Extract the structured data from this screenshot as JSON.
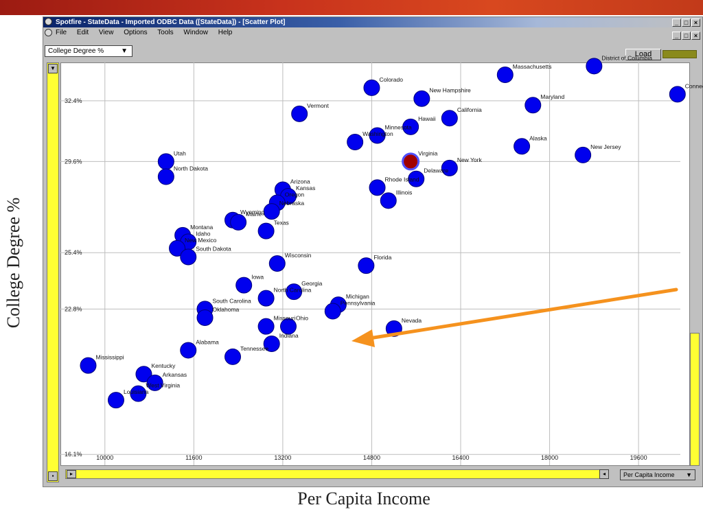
{
  "slide": {
    "y_axis_title": "College Degree %",
    "x_axis_title": "Per Capita Income"
  },
  "window": {
    "title": "Spotfire - StateData - Imported ODBC Data ([StateData]) - [Scatter Plot]",
    "buttons": [
      "_",
      "□",
      "×"
    ],
    "menu": [
      "File",
      "Edit",
      "View",
      "Options",
      "Tools",
      "Window",
      "Help"
    ],
    "y_selector": "College Degree %",
    "y_selector_arrow": "▼",
    "x_selector": "Per Capita Income",
    "x_selector_arrow": "▼",
    "load_label": "Load",
    "accent_color": "#0a246a",
    "scrollbar_color": "#ffff33",
    "arrow_color": "#f5921e"
  },
  "chart_data": {
    "type": "scatter",
    "xlabel": "Per Capita Income",
    "ylabel": "College Degree %",
    "xlim": [
      9200,
      20500
    ],
    "ylim": [
      15.6,
      34.2
    ],
    "x_ticks": [
      10000,
      11600,
      13200,
      14800,
      16400,
      18000,
      19600
    ],
    "x_tick_labels": [
      "10000",
      "11600",
      "13200",
      "14800",
      "16400",
      "18000",
      "19600"
    ],
    "y_ticks": [
      16.1,
      22.8,
      25.4,
      29.6,
      32.4
    ],
    "y_tick_labels": [
      "16.1%",
      "22.8%",
      "25.4%",
      "29.6%",
      "32.4%"
    ],
    "grid": true,
    "point_color": "#0000ee",
    "highlight_color": "#a00000",
    "points": [
      {
        "label": "Colorado",
        "x": 14800,
        "y": 33.0
      },
      {
        "label": "Massachusetts",
        "x": 17200,
        "y": 33.6
      },
      {
        "label": "District of Columbia",
        "x": 18800,
        "y": 34.0
      },
      {
        "label": "Connecticut",
        "x": 20300,
        "y": 32.7
      },
      {
        "label": "New Hampshire",
        "x": 15700,
        "y": 32.5
      },
      {
        "label": "Maryland",
        "x": 17700,
        "y": 32.2
      },
      {
        "label": "Vermont",
        "x": 13500,
        "y": 31.8
      },
      {
        "label": "California",
        "x": 16200,
        "y": 31.6
      },
      {
        "label": "Hawaii",
        "x": 15500,
        "y": 31.2
      },
      {
        "label": "Minnesota",
        "x": 14900,
        "y": 30.8
      },
      {
        "label": "Washington",
        "x": 14500,
        "y": 30.5
      },
      {
        "label": "Alaska",
        "x": 17500,
        "y": 30.3
      },
      {
        "label": "New Jersey",
        "x": 18600,
        "y": 29.9
      },
      {
        "label": "Virginia",
        "x": 15500,
        "y": 29.6,
        "highlight": true
      },
      {
        "label": "New York",
        "x": 16200,
        "y": 29.3
      },
      {
        "label": "Delaware",
        "x": 15600,
        "y": 28.8
      },
      {
        "label": "Utah",
        "x": 11100,
        "y": 29.6
      },
      {
        "label": "North Dakota",
        "x": 11100,
        "y": 28.9
      },
      {
        "label": "Rhode Island",
        "x": 14900,
        "y": 28.4
      },
      {
        "label": "Illinois",
        "x": 15100,
        "y": 27.8
      },
      {
        "label": "Arizona",
        "x": 13200,
        "y": 28.3
      },
      {
        "label": "Kansas",
        "x": 13300,
        "y": 28.0
      },
      {
        "label": "Oregon",
        "x": 13100,
        "y": 27.7
      },
      {
        "label": "Nebraska",
        "x": 13000,
        "y": 27.3
      },
      {
        "label": "Wyoming",
        "x": 12300,
        "y": 26.9
      },
      {
        "label": "Maine",
        "x": 12400,
        "y": 26.8
      },
      {
        "label": "Texas",
        "x": 12900,
        "y": 26.4
      },
      {
        "label": "Montana",
        "x": 11400,
        "y": 26.2
      },
      {
        "label": "Idaho",
        "x": 11500,
        "y": 25.9
      },
      {
        "label": "New Mexico",
        "x": 11300,
        "y": 25.6
      },
      {
        "label": "South Dakota",
        "x": 11500,
        "y": 25.2
      },
      {
        "label": "Wisconsin",
        "x": 13100,
        "y": 24.9
      },
      {
        "label": "Florida",
        "x": 14700,
        "y": 24.8
      },
      {
        "label": "Iowa",
        "x": 12500,
        "y": 23.9
      },
      {
        "label": "Georgia",
        "x": 13400,
        "y": 23.6
      },
      {
        "label": "North Carolina",
        "x": 12900,
        "y": 23.3
      },
      {
        "label": "Michigan",
        "x": 14200,
        "y": 23.0
      },
      {
        "label": "Pennsylvania",
        "x": 14100,
        "y": 22.7
      },
      {
        "label": "South Carolina",
        "x": 11800,
        "y": 22.8
      },
      {
        "label": "Oklahoma",
        "x": 11800,
        "y": 22.4
      },
      {
        "label": "Missouri",
        "x": 12900,
        "y": 22.0
      },
      {
        "label": "Ohio",
        "x": 13300,
        "y": 22.0
      },
      {
        "label": "Indiana",
        "x": 13000,
        "y": 21.2
      },
      {
        "label": "Nevada",
        "x": 15200,
        "y": 21.9
      },
      {
        "label": "Alabama",
        "x": 11500,
        "y": 20.9
      },
      {
        "label": "Tennessee",
        "x": 12300,
        "y": 20.6
      },
      {
        "label": "Mississippi",
        "x": 9700,
        "y": 20.2
      },
      {
        "label": "Kentucky",
        "x": 10700,
        "y": 19.8
      },
      {
        "label": "Arkansas",
        "x": 10900,
        "y": 19.4
      },
      {
        "label": "West Virginia",
        "x": 10600,
        "y": 18.9
      },
      {
        "label": "Louisiana",
        "x": 10200,
        "y": 18.6
      }
    ]
  }
}
